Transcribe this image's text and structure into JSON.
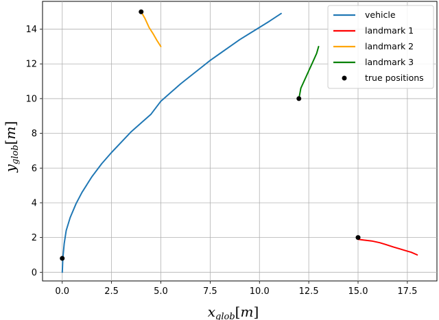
{
  "chart_data": {
    "type": "line",
    "title": "",
    "xlabel": "x_glob[m]",
    "ylabel": "y_glob[m]",
    "xlim": [
      -1.0,
      19.0
    ],
    "ylim": [
      -0.5,
      15.6
    ],
    "xticks": [
      0.0,
      2.5,
      5.0,
      7.5,
      10.0,
      12.5,
      15.0,
      17.5
    ],
    "yticks": [
      0,
      2,
      4,
      6,
      8,
      10,
      12,
      14
    ],
    "xtick_labels": [
      "0.0",
      "2.5",
      "5.0",
      "7.5",
      "10.0",
      "12.5",
      "15.0",
      "17.5"
    ],
    "ytick_labels": [
      "0",
      "2",
      "4",
      "6",
      "8",
      "10",
      "12",
      "14"
    ],
    "grid": true,
    "legend_position": "top-right",
    "series": [
      {
        "name": "vehicle",
        "color": "#1f77b4",
        "x": [
          0.0,
          0.03,
          0.1,
          0.2,
          0.4,
          0.7,
          1.0,
          1.5,
          2.0,
          2.5,
          3.0,
          3.5,
          4.0,
          4.5,
          5.0,
          5.5,
          6.0,
          6.5,
          7.0,
          7.5,
          8.0,
          8.5,
          9.0,
          9.5,
          10.0,
          10.5,
          11.1
        ],
        "y": [
          0.0,
          0.8,
          1.65,
          2.4,
          3.15,
          3.95,
          4.6,
          5.5,
          6.25,
          6.9,
          7.5,
          8.1,
          8.6,
          9.1,
          9.85,
          10.35,
          10.85,
          11.3,
          11.75,
          12.2,
          12.6,
          13.0,
          13.4,
          13.75,
          14.1,
          14.45,
          14.9
        ]
      },
      {
        "name": "landmark 1",
        "color": "#ff0000",
        "x": [
          15.0,
          15.3,
          15.7,
          16.1,
          16.4,
          16.8,
          17.1,
          17.4,
          17.7,
          18.0
        ],
        "y": [
          1.9,
          1.85,
          1.8,
          1.7,
          1.6,
          1.45,
          1.35,
          1.25,
          1.15,
          1.0
        ]
      },
      {
        "name": "landmark 2",
        "color": "#ffa500",
        "x": [
          4.0,
          4.2,
          4.4,
          4.6,
          4.8,
          5.0
        ],
        "y": [
          15.0,
          14.6,
          14.1,
          13.75,
          13.35,
          13.0
        ]
      },
      {
        "name": "landmark 3",
        "color": "#008000",
        "x": [
          12.0,
          12.1,
          12.3,
          12.5,
          12.7,
          12.9,
          13.0
        ],
        "y": [
          10.0,
          10.6,
          11.1,
          11.6,
          12.1,
          12.6,
          13.0
        ]
      }
    ],
    "true_positions": {
      "name": "true positions",
      "color": "#000000",
      "x": [
        0.0,
        15.0,
        4.0,
        12.0
      ],
      "y": [
        0.8,
        2.0,
        15.0,
        10.0
      ]
    }
  }
}
